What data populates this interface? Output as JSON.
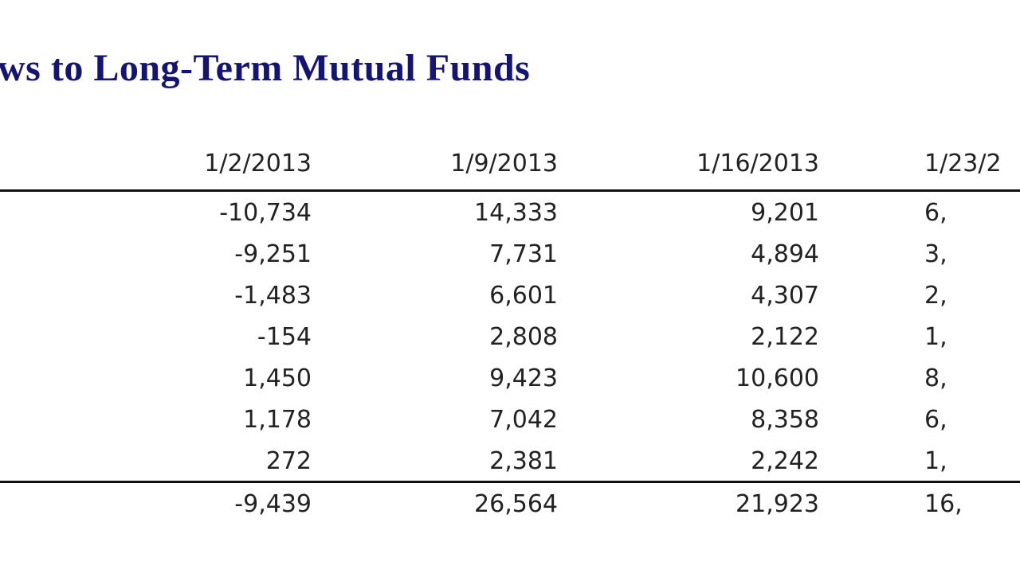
{
  "title": "ws to Long-Term Mutual Funds",
  "columns": [
    "1/2/2013",
    "1/9/2013",
    "1/16/2013",
    "1/23/2"
  ],
  "rows": [
    [
      "-10,734",
      "14,333",
      "9,201",
      "6,"
    ],
    [
      "-9,251",
      "7,731",
      "4,894",
      "3,"
    ],
    [
      "-1,483",
      "6,601",
      "4,307",
      "2,"
    ],
    [
      "-154",
      "2,808",
      "2,122",
      "1,"
    ],
    [
      "1,450",
      "9,423",
      "10,600",
      "8,"
    ],
    [
      "1,178",
      "7,042",
      "8,358",
      "6,"
    ],
    [
      "272",
      "2,381",
      "2,242",
      "1,"
    ]
  ],
  "total": [
    "-9,439",
    "26,564",
    "21,923",
    "16,"
  ]
}
